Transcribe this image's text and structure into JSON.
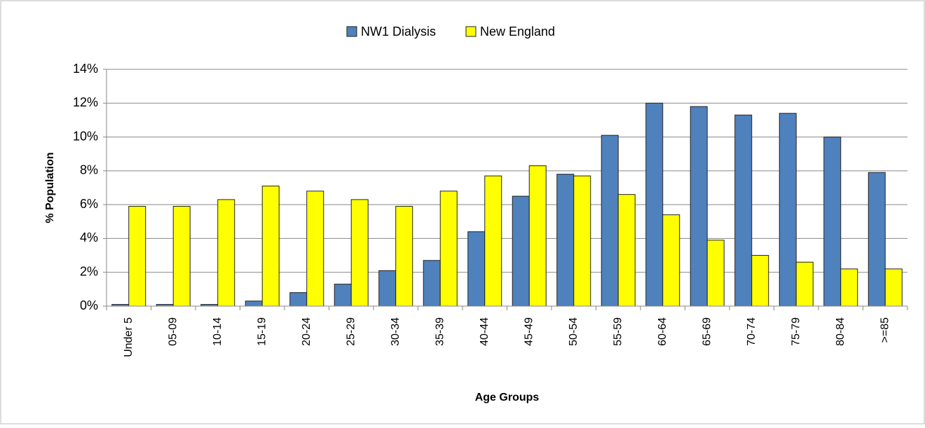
{
  "chart_data": {
    "type": "bar",
    "xlabel": "Age Groups",
    "ylabel": "% Population",
    "categories": [
      "Under 5",
      "05-09",
      "10-14",
      "15-19",
      "20-24",
      "25-29",
      "30-34",
      "35-39",
      "40-44",
      "45-49",
      "50-54",
      "55-59",
      "60-64",
      "65-69",
      "70-74",
      "75-79",
      "80-84",
      ">=85"
    ],
    "series": [
      {
        "name": "NW1 Dialysis",
        "color": "#4f81bd",
        "values": [
          0.1,
          0.1,
          0.1,
          0.3,
          0.8,
          1.3,
          2.1,
          2.7,
          4.4,
          6.5,
          7.8,
          10.1,
          12.0,
          11.8,
          11.3,
          11.4,
          10.0,
          7.9
        ]
      },
      {
        "name": "New England",
        "color": "#ffff00",
        "values": [
          5.9,
          5.9,
          6.3,
          7.1,
          6.8,
          6.3,
          5.9,
          6.8,
          7.7,
          8.3,
          7.7,
          6.6,
          5.4,
          3.9,
          3.0,
          2.6,
          2.2,
          2.2
        ]
      }
    ],
    "ylim": [
      0,
      14
    ],
    "yticks": [
      {
        "value": 0,
        "label": "0%"
      },
      {
        "value": 2,
        "label": "2%"
      },
      {
        "value": 4,
        "label": "4%"
      },
      {
        "value": 6,
        "label": "6%"
      },
      {
        "value": 8,
        "label": "8%"
      },
      {
        "value": 10,
        "label": "10%"
      },
      {
        "value": 12,
        "label": "12%"
      },
      {
        "value": 14,
        "label": "14%"
      }
    ],
    "grid": true,
    "legend": "top"
  }
}
